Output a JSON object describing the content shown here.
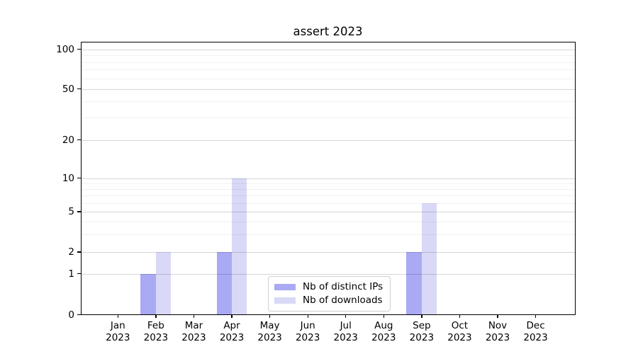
{
  "chart_data": {
    "type": "bar",
    "title": "assert 2023",
    "months": [
      "Jan",
      "Feb",
      "Mar",
      "Apr",
      "May",
      "Jun",
      "Jul",
      "Aug",
      "Sep",
      "Oct",
      "Nov",
      "Dec"
    ],
    "year_label": "2023",
    "series": [
      {
        "name": "Nb of distinct IPs",
        "color": "#a9a9f4",
        "values": [
          0,
          1,
          0,
          2,
          0,
          0,
          0,
          0,
          2,
          0,
          0,
          0
        ]
      },
      {
        "name": "Nb of downloads",
        "color": "#d9d9f7",
        "values": [
          0,
          2,
          0,
          10,
          0,
          0,
          0,
          0,
          6,
          0,
          0,
          0
        ]
      }
    ],
    "yticks": [
      0,
      1,
      2,
      5,
      10,
      20,
      50,
      100
    ],
    "minor_yticks": [
      3,
      4,
      6,
      7,
      8,
      9,
      30,
      40,
      60,
      70,
      80,
      90
    ],
    "yscale": "symlog",
    "ylim": [
      0,
      115
    ],
    "xlabel": "",
    "ylabel": "",
    "grid": "horizontal major and minor gridlines",
    "legend_position": "lower center inside plot",
    "axis_color": "#000000",
    "major_grid_color": "#d6d6d6",
    "minor_grid_color": "#efefef",
    "background_color": "#ffffff"
  }
}
